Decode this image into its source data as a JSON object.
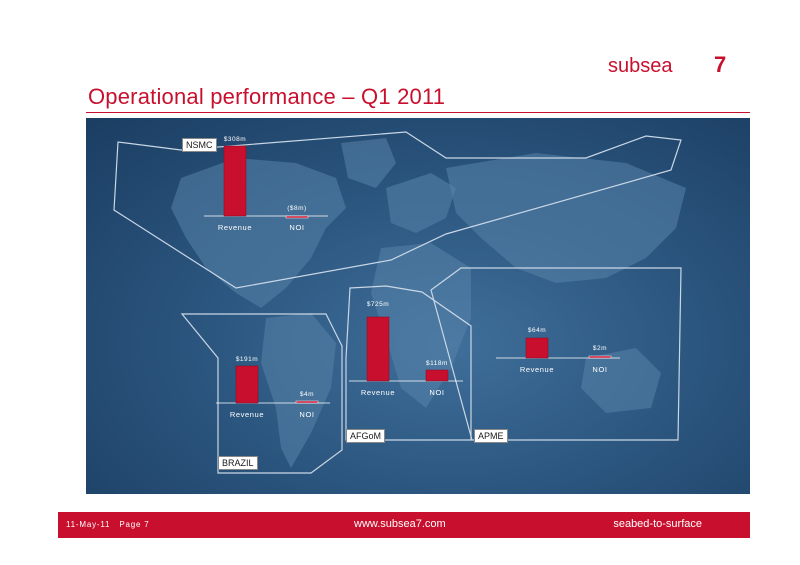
{
  "brand": {
    "name": "subsea",
    "mark": "7"
  },
  "slide_title": "Operational performance – Q1 2011",
  "footer": {
    "date": "11-May-11",
    "page": "Page 7",
    "website": "www.subsea7.com",
    "tagline": "seabed-to-surface"
  },
  "colors": {
    "accent": "#c8102e",
    "bar": "#c8102e",
    "map_bg": "#2c5780"
  },
  "chart_data": [
    {
      "type": "bar",
      "region": "NSMC",
      "categories": [
        "Revenue",
        "NOI"
      ],
      "values": [
        308,
        -8
      ],
      "labels": [
        "$308m",
        "($8m)"
      ],
      "unit": "$m"
    },
    {
      "type": "bar",
      "region": "BRAZIL",
      "categories": [
        "Revenue",
        "NOI"
      ],
      "values": [
        191,
        4
      ],
      "labels": [
        "$191m",
        "$4m"
      ],
      "unit": "$m"
    },
    {
      "type": "bar",
      "region": "AFGoM",
      "categories": [
        "Revenue",
        "NOI"
      ],
      "values": [
        725,
        118
      ],
      "labels": [
        "$725m",
        "$118m"
      ],
      "unit": "$m"
    },
    {
      "type": "bar",
      "region": "APME",
      "categories": [
        "Revenue",
        "NOI"
      ],
      "values": [
        64,
        2
      ],
      "labels": [
        "$64m",
        "$2m"
      ],
      "unit": "$m"
    }
  ]
}
